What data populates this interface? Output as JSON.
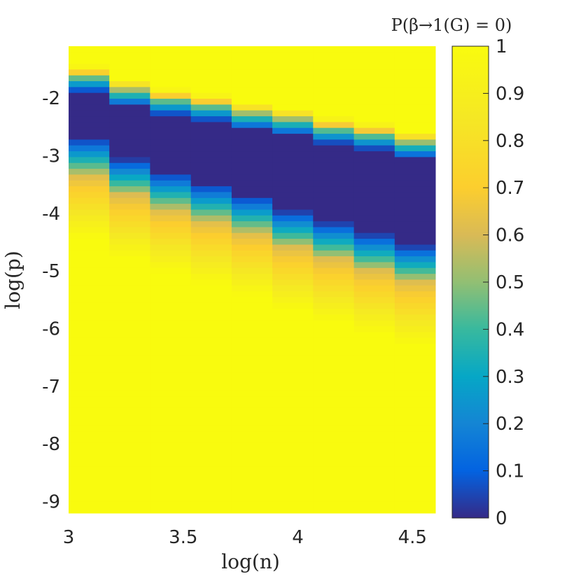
{
  "chart_data": {
    "type": "heatmap",
    "title": "",
    "xlabel": "log(n)",
    "ylabel": "log(p)",
    "colorbar_label": "P(β→1(G) = 0)",
    "colormap": "parula",
    "x_range": [
      3,
      4.6
    ],
    "y_range": [
      -9.2,
      -1.1
    ],
    "x_ticks": [
      "3",
      "3.5",
      "4",
      "4.5"
    ],
    "y_ticks": [
      "-2",
      "-3",
      "-4",
      "-5",
      "-6",
      "-7",
      "-8",
      "-9"
    ],
    "colorbar_ticks": [
      "0",
      "0.1",
      "0.2",
      "0.3",
      "0.4",
      "0.5",
      "0.6",
      "0.7",
      "0.8",
      "0.9",
      "1"
    ],
    "colorbar_range": [
      0,
      1
    ],
    "x_columns": [
      3.0,
      3.2,
      3.4,
      3.6,
      3.8,
      4.0,
      4.2,
      4.4,
      4.6
    ],
    "boundary_rows": [
      {
        "x": 3.0,
        "upper_logp": -1.6,
        "lower_logp": -3.3
      },
      {
        "x": 3.2,
        "upper_logp": -1.85,
        "lower_logp": -3.65
      },
      {
        "x": 3.4,
        "upper_logp": -2.0,
        "lower_logp": -3.9
      },
      {
        "x": 3.6,
        "upper_logp": -2.1,
        "lower_logp": -4.1
      },
      {
        "x": 3.8,
        "upper_logp": -2.25,
        "lower_logp": -4.3
      },
      {
        "x": 4.0,
        "upper_logp": -2.35,
        "lower_logp": -4.55
      },
      {
        "x": 4.2,
        "upper_logp": -2.5,
        "lower_logp": -4.75
      },
      {
        "x": 4.4,
        "upper_logp": -2.6,
        "lower_logp": -4.95
      },
      {
        "x": 4.6,
        "upper_logp": -2.75,
        "lower_logp": -5.15
      }
    ],
    "grid": false
  },
  "colors": {
    "low": "#352a87",
    "mid": "#0fa7c9",
    "high": "#f9fb0e"
  }
}
